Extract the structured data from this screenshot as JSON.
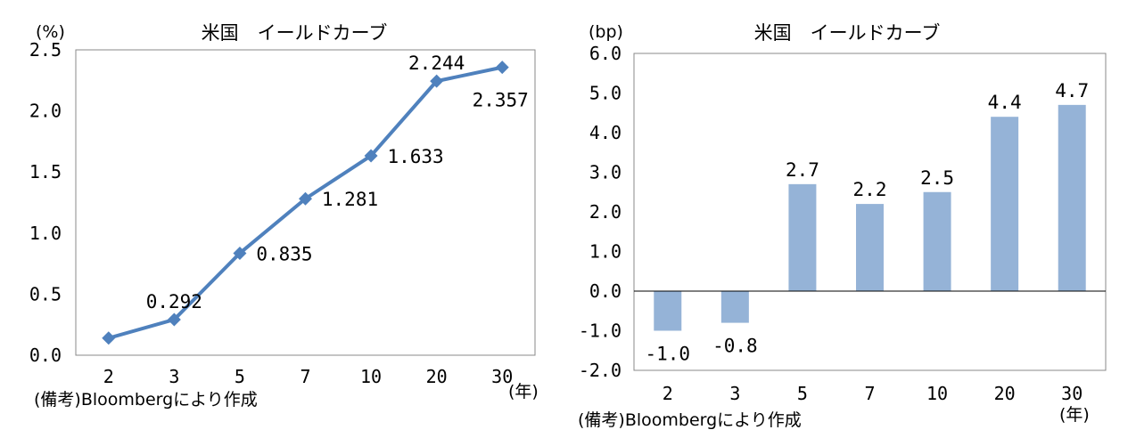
{
  "chart_data": [
    {
      "type": "line",
      "title": "米国　イールドカーブ",
      "ylabel": "(%)",
      "xlabel": "(年)",
      "source": "(備考)Bloombergにより作成",
      "categories": [
        "2",
        "3",
        "5",
        "7",
        "10",
        "20",
        "30"
      ],
      "values": [
        0.14,
        0.292,
        0.835,
        1.281,
        1.633,
        2.244,
        2.357
      ],
      "data_labels": [
        "",
        "0.292",
        "0.835",
        "1.281",
        "1.633",
        "2.244",
        "2.357"
      ],
      "ylim": [
        0,
        2.5
      ],
      "yticks": [
        "0.0",
        "0.5",
        "1.0",
        "1.5",
        "2.0",
        "2.5"
      ],
      "ytick_values": [
        0,
        0.5,
        1.0,
        1.5,
        2.0,
        2.5
      ],
      "grid": false,
      "colors": {
        "series": "#4f81bd"
      }
    },
    {
      "type": "bar",
      "title": "米国　イールドカーブ",
      "ylabel": "(bp)",
      "xlabel": "(年)",
      "source": "(備考)Bloombergにより作成",
      "categories": [
        "2",
        "3",
        "5",
        "7",
        "10",
        "20",
        "30"
      ],
      "values": [
        -1.0,
        -0.8,
        2.7,
        2.2,
        2.5,
        4.4,
        4.7
      ],
      "data_labels": [
        "-1.0",
        "-0.8",
        "2.7",
        "2.2",
        "2.5",
        "4.4",
        "4.7"
      ],
      "ylim": [
        -2.0,
        6.0
      ],
      "yticks": [
        "-2.0",
        "-1.0",
        "0.0",
        "1.0",
        "2.0",
        "3.0",
        "4.0",
        "5.0",
        "6.0"
      ],
      "ytick_values": [
        -2,
        -1,
        0,
        1,
        2,
        3,
        4,
        5,
        6
      ],
      "grid": false,
      "colors": {
        "series": "#95b3d7"
      }
    }
  ]
}
